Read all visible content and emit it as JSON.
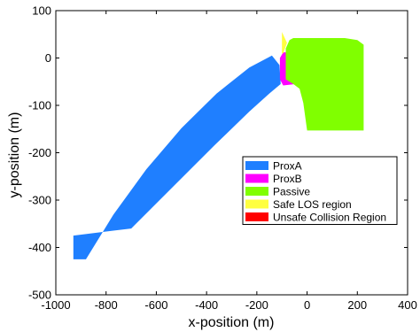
{
  "chart_data": {
    "type": "area",
    "title": "",
    "xlabel": "x-position (m)",
    "ylabel": "y-position (m)",
    "xlim": [
      -1000,
      400
    ],
    "ylim": [
      -500,
      100
    ],
    "xticks": [
      "-1000",
      "-800",
      "-600",
      "-400",
      "-200",
      "0",
      "200",
      "400"
    ],
    "yticks": [
      "100",
      "0",
      "-100",
      "-200",
      "-300",
      "-400",
      "-500"
    ],
    "xtick_values": [
      -1000,
      -800,
      -600,
      -400,
      -200,
      0,
      200,
      400
    ],
    "ytick_values": [
      100,
      0,
      -100,
      -200,
      -300,
      -400,
      -500
    ],
    "grid": false,
    "legend_position": "lower-right",
    "series": [
      {
        "name": "ProxA",
        "color": "#1f7fff",
        "polygon": [
          [
            -930,
            -425
          ],
          [
            -880,
            -425
          ],
          [
            -770,
            -330
          ],
          [
            -640,
            -235
          ],
          [
            -500,
            -148
          ],
          [
            -360,
            -75
          ],
          [
            -230,
            -20
          ],
          [
            -140,
            5
          ],
          [
            -110,
            -15
          ],
          [
            -105,
            -55
          ],
          [
            -150,
            -75
          ],
          [
            -230,
            -113
          ],
          [
            -370,
            -185
          ],
          [
            -530,
            -270
          ],
          [
            -700,
            -360
          ],
          [
            -930,
            -375
          ]
        ]
      },
      {
        "name": "ProxB",
        "color": "#ff00ff",
        "polygon": [
          [
            -108,
            0
          ],
          [
            -95,
            12
          ],
          [
            -75,
            12
          ],
          [
            -55,
            0
          ],
          [
            -45,
            -55
          ],
          [
            -95,
            -58
          ],
          [
            -108,
            -45
          ]
        ]
      },
      {
        "name": "Passive",
        "color": "#80ff00",
        "polygon": [
          [
            -85,
            20
          ],
          [
            -70,
            38
          ],
          [
            -55,
            42
          ],
          [
            150,
            42
          ],
          [
            200,
            38
          ],
          [
            225,
            28
          ],
          [
            225,
            -153
          ],
          [
            0,
            -153
          ],
          [
            -15,
            -95
          ],
          [
            -30,
            -65
          ],
          [
            -55,
            -55
          ],
          [
            -85,
            -45
          ]
        ]
      },
      {
        "name": "Safe LOS region",
        "color": "#ffff40",
        "polygon": [
          [
            -100,
            55
          ],
          [
            -80,
            32
          ],
          [
            -95,
            10
          ],
          [
            -100,
            10
          ]
        ]
      },
      {
        "name": "Unsafe Collision Region",
        "color": "#ff0000",
        "polygon": []
      }
    ]
  }
}
